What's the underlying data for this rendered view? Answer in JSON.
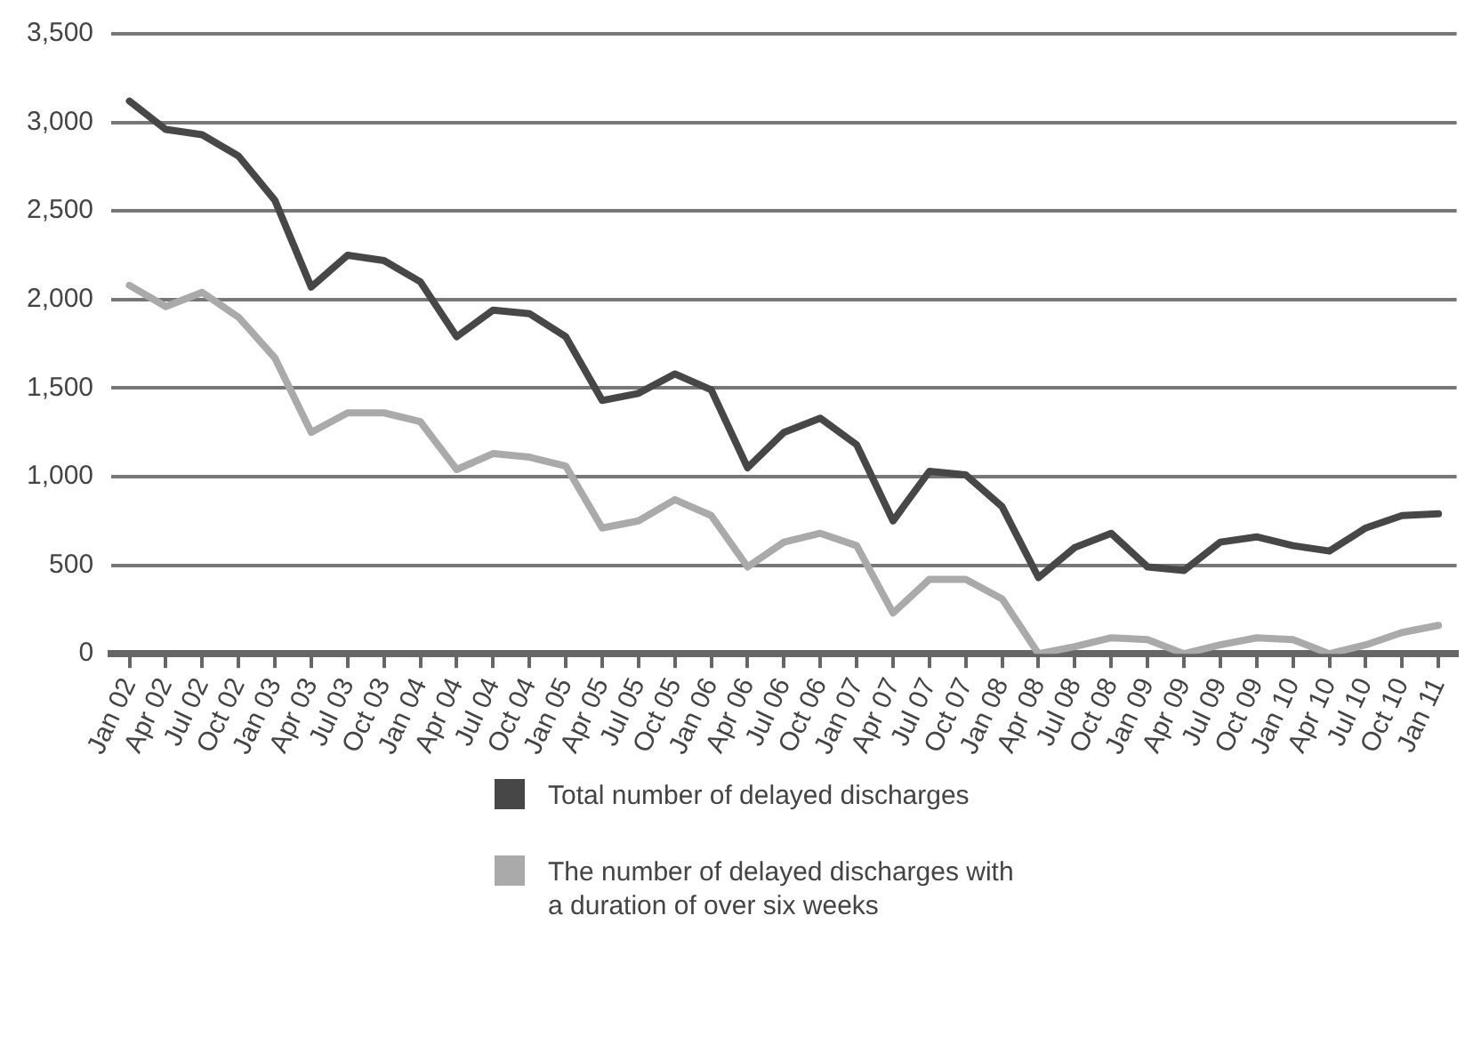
{
  "chart_data": {
    "type": "line",
    "categories": [
      "Jan 02",
      "Apr 02",
      "Jul 02",
      "Oct 02",
      "Jan 03",
      "Apr 03",
      "Jul 03",
      "Oct 03",
      "Jan 04",
      "Apr 04",
      "Jul 04",
      "Oct 04",
      "Jan 05",
      "Apr 05",
      "Jul 05",
      "Oct 05",
      "Jan 06",
      "Apr 06",
      "Jul 06",
      "Oct 06",
      "Jan 07",
      "Apr 07",
      "Jul 07",
      "Oct 07",
      "Jan 08",
      "Apr 08",
      "Jul 08",
      "Oct 08",
      "Jan 09",
      "Apr 09",
      "Jul 09",
      "Oct 09",
      "Jan 10",
      "Apr 10",
      "Jul 10",
      "Oct 10",
      "Jan 11"
    ],
    "series": [
      {
        "name": "Total number of delayed discharges",
        "color": "#474747",
        "values": [
          3120,
          2960,
          2930,
          2810,
          2560,
          2070,
          2250,
          2220,
          2100,
          1790,
          1940,
          1920,
          1790,
          1430,
          1470,
          1580,
          1490,
          1050,
          1250,
          1330,
          1180,
          750,
          1030,
          1010,
          830,
          430,
          600,
          680,
          490,
          470,
          630,
          660,
          610,
          580,
          710,
          780,
          790
        ]
      },
      {
        "name": "The number of delayed discharges with a duration of over six weeks",
        "color": "#aaaaaa",
        "values": [
          2080,
          1960,
          2040,
          1900,
          1670,
          1250,
          1360,
          1360,
          1310,
          1040,
          1130,
          1110,
          1060,
          710,
          750,
          870,
          780,
          490,
          630,
          680,
          610,
          230,
          420,
          420,
          310,
          0,
          40,
          90,
          80,
          0,
          50,
          90,
          80,
          0,
          50,
          120,
          160
        ]
      }
    ],
    "ylim": [
      0,
      3500
    ],
    "yticks": [
      {
        "value": 0,
        "label": "0"
      },
      {
        "value": 500,
        "label": "500"
      },
      {
        "value": 1000,
        "label": "1,000"
      },
      {
        "value": 1500,
        "label": "1,500"
      },
      {
        "value": 2000,
        "label": "2,000"
      },
      {
        "value": 2500,
        "label": "2,500"
      },
      {
        "value": 3000,
        "label": "3,000"
      },
      {
        "value": 3500,
        "label": "3,500"
      }
    ],
    "grid": "y",
    "legend": "bottom",
    "marker": "none",
    "line_style": "solid"
  }
}
